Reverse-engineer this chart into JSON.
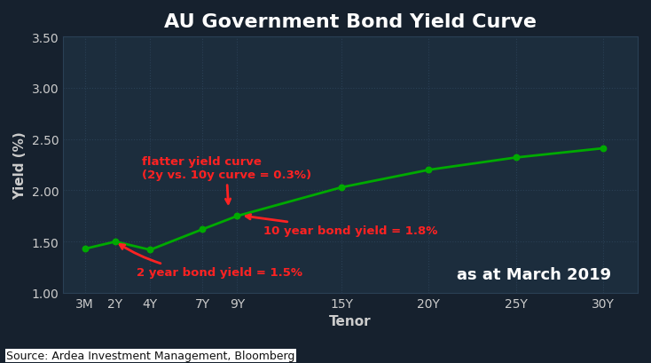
{
  "title": "AU Government Bond Yield Curve",
  "xlabel": "Tenor",
  "ylabel": "Yield (%)",
  "background_color": "#16212e",
  "plot_bg_color": "#1c2d3d",
  "grid_color": "#2a4055",
  "title_color": "#ffffff",
  "label_color": "#cccccc",
  "tick_color": "#cccccc",
  "line_color": "#00aa00",
  "marker_color": "#00aa00",
  "source_text": "Source: Ardea Investment Management, Bloomberg",
  "date_label": "as at March 2019",
  "ylim": [
    1.0,
    3.5
  ],
  "yticks": [
    1.0,
    1.5,
    2.0,
    2.5,
    3.0,
    3.5
  ],
  "tenor_labels": [
    "3M",
    "2Y",
    "4Y",
    "7Y",
    "9Y",
    "15Y",
    "20Y",
    "25Y",
    "30Y"
  ],
  "tenor_x": [
    0.25,
    2,
    4,
    7,
    9,
    15,
    20,
    25,
    30
  ],
  "yields": [
    1.43,
    1.5,
    1.42,
    1.62,
    1.75,
    2.03,
    2.2,
    2.32,
    2.41
  ],
  "annotation_flatter_text": "flatter yield curve\n(2y vs. 10y curve = 0.3%)",
  "annotation_2y_text": "2 year bond yield = 1.5%",
  "annotation_10y_text": "10 year bond yield = 1.8%",
  "ann_color": "#ff2222",
  "title_fontsize": 16,
  "axis_fontsize": 11,
  "tick_fontsize": 10,
  "source_fontsize": 9,
  "date_fontsize": 13
}
